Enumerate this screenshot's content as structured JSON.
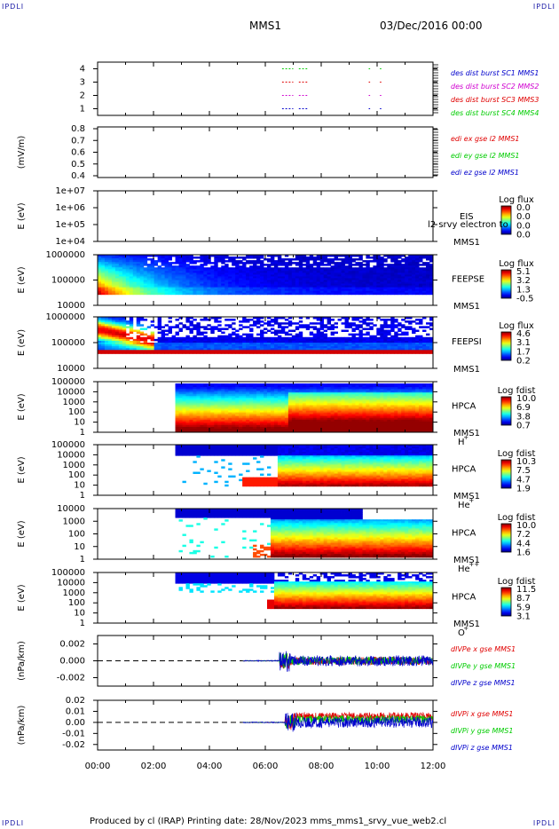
{
  "corner_marks": {
    "tl": "IPDLI",
    "tr": "IPDLI",
    "bl": "IPDLI",
    "br": "IPDLI"
  },
  "header": {
    "spacecraft": "MMS1",
    "date": "03/Dec/2016 00:00"
  },
  "footer": {
    "text": "Produced by cl (IRAP)   Printing date: 28/Nov/2023   mms_mms1_srvy_vue_web2.cl"
  },
  "colors": {
    "mms1": "#0000cc",
    "mms2": "#d000d0",
    "mms3": "#e00000",
    "mms4": "#00cc00"
  },
  "chart_data": [
    {
      "type": "scatter",
      "id": "burst",
      "ylim": [
        0.5,
        4.5
      ],
      "yticks": [
        "1",
        "2",
        "3",
        "4"
      ],
      "labels": [
        {
          "text": "des dist burst SC1 MMS1",
          "color": "#0000cc"
        },
        {
          "text": "des dist burst SC2 MMS2",
          "color": "#d000d0"
        },
        {
          "text": "des dist burst SC3 MMS3",
          "color": "#e00000"
        },
        {
          "text": "des dist burst SC4 MMS4",
          "color": "#00cc00"
        }
      ],
      "intervals_hours": [
        [
          6.6,
          7.0
        ],
        [
          7.2,
          7.5
        ],
        [
          9.7,
          9.75
        ],
        [
          10.1,
          10.15
        ]
      ]
    },
    {
      "type": "line",
      "id": "edi",
      "ylabel": "(mV/m)",
      "ylim": [
        0.4,
        0.8
      ],
      "yticks": [
        "0.4",
        "0.5",
        "0.6",
        "0.7",
        "0.8"
      ],
      "labels": [
        {
          "text": "edi ex gse l2 MMS1",
          "color": "#e00000"
        },
        {
          "text": "edi ey gse l2 MMS1",
          "color": "#00cc00"
        },
        {
          "text": "edi ez gse l2 MMS1",
          "color": "#0000cc"
        }
      ]
    },
    {
      "type": "heatmap",
      "id": "eis",
      "ylabel": "E (eV)",
      "yticks": [
        "1e+04",
        "1e+05",
        "1e+06",
        "1e+07"
      ],
      "instrument": "EIS",
      "sc": "MMS1",
      "extra": "l2 srvy electron to",
      "cbar_title": "Log flux",
      "cbar_ticks": [
        "0.0",
        "0.0",
        "0.0",
        "0.0"
      ]
    },
    {
      "type": "heatmap",
      "id": "feepse",
      "ylabel": "E (eV)",
      "yticks": [
        "10000",
        "100000",
        "1000000"
      ],
      "instrument": "FEEPSE",
      "sc": "MMS1",
      "cbar_title": "Log flux",
      "cbar_ticks": [
        "5.1",
        "3.2",
        "1.3",
        "-0.5"
      ],
      "data_start_hours": 0.0
    },
    {
      "type": "heatmap",
      "id": "feepsi",
      "ylabel": "E (eV)",
      "yticks": [
        "10000",
        "100000",
        "1000000"
      ],
      "instrument": "FEEPSI",
      "sc": "MMS1",
      "cbar_title": "Log flux",
      "cbar_ticks": [
        "4.6",
        "3.1",
        "1.7",
        "0.2"
      ],
      "data_start_hours": 0.0
    },
    {
      "type": "heatmap",
      "id": "hpca_h",
      "ylabel": "E (eV)",
      "yticks": [
        "1",
        "10",
        "100",
        "1000",
        "10000",
        "100000"
      ],
      "instrument": "HPCA",
      "sc": "MMS1",
      "species": "H",
      "charge": "+",
      "cbar_title": "Log fdist",
      "cbar_ticks": [
        "10.0",
        "6.9",
        "3.8",
        "0.7"
      ],
      "data_start_hours": 2.75
    },
    {
      "type": "heatmap",
      "id": "hpca_he1",
      "ylabel": "E (eV)",
      "yticks": [
        "1",
        "10",
        "100",
        "1000",
        "10000",
        "100000"
      ],
      "instrument": "HPCA",
      "sc": "MMS1",
      "species": "He",
      "charge": "+",
      "cbar_title": "Log fdist",
      "cbar_ticks": [
        "10.3",
        "7.5",
        "4.7",
        "1.9"
      ],
      "data_start_hours": 2.75
    },
    {
      "type": "heatmap",
      "id": "hpca_he2",
      "ylabel": "E (eV)",
      "yticks": [
        "1",
        "10",
        "100",
        "1000",
        "10000"
      ],
      "instrument": "HPCA",
      "sc": "MMS1",
      "species": "He",
      "charge": "++",
      "cbar_title": "Log fdist",
      "cbar_ticks": [
        "10.0",
        "7.2",
        "4.4",
        "1.6"
      ],
      "data_start_hours": 2.75
    },
    {
      "type": "heatmap",
      "id": "hpca_o",
      "ylabel": "E (eV)",
      "yticks": [
        "1",
        "10",
        "100",
        "1000",
        "10000",
        "100000"
      ],
      "instrument": "HPCA",
      "sc": "MMS1",
      "species": "O",
      "charge": "+",
      "cbar_title": "Log fdist",
      "cbar_ticks": [
        "11.5",
        "8.7",
        "5.9",
        "3.1"
      ],
      "data_start_hours": 2.75
    },
    {
      "type": "line",
      "id": "divpe",
      "ylabel": "(nPa/km)",
      "ylim": [
        -0.003,
        0.003
      ],
      "yticks": [
        "-0.002",
        "0.000",
        "0.002"
      ],
      "labels": [
        {
          "text": "dIVPe x gse MMS1",
          "color": "#e00000"
        },
        {
          "text": "dIVPe y gse MMS1",
          "color": "#00cc00"
        },
        {
          "text": "dIVPe z gse MMS1",
          "color": "#0000cc"
        }
      ],
      "data_start_hours": 5.2,
      "burst_start_hours": 6.5
    },
    {
      "type": "line",
      "id": "divpi",
      "ylabel": "(nPa/km)",
      "ylim": [
        -0.025,
        0.02
      ],
      "yticks": [
        "-0.02",
        "-0.01",
        "0.00",
        "0.01",
        "0.02"
      ],
      "labels": [
        {
          "text": "dIVPi x gse MMS1",
          "color": "#e00000"
        },
        {
          "text": "dIVPi y gse MMS1",
          "color": "#00cc00"
        },
        {
          "text": "dIVPi z gse MMS1",
          "color": "#0000cc"
        }
      ],
      "data_start_hours": 5.2,
      "burst_start_hours": 6.7
    }
  ],
  "time_axis": {
    "range_hours": [
      0,
      12
    ],
    "tick_labels": [
      "00:00",
      "02:00",
      "04:00",
      "06:00",
      "08:00",
      "10:00",
      "12:00"
    ]
  }
}
